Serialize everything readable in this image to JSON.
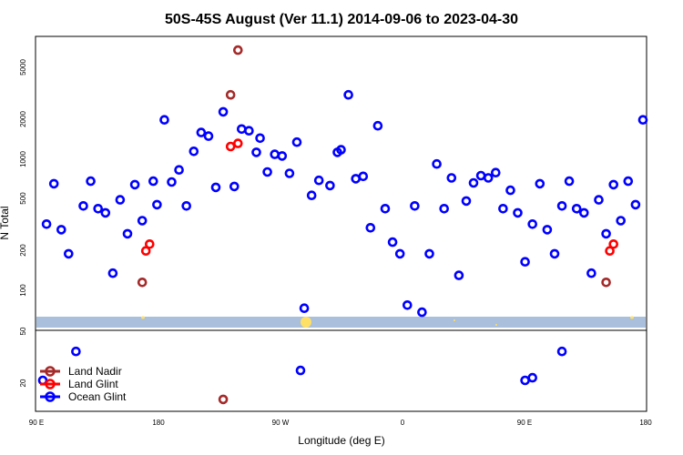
{
  "chart_data": {
    "type": "scatter",
    "title": "50S-45S August (Ver 11.1)   2014-09-06 to 2023-04-30",
    "xlabel": "Longitude (deg E)",
    "ylabel": "N Total",
    "x_ticks": [
      "90 E",
      "180",
      "90 W",
      "0",
      "90 E",
      "180"
    ],
    "y_ticks_top": [
      "100",
      "200",
      "500",
      "1000",
      "2000",
      "5000"
    ],
    "y_ticks_bottom": [
      "50",
      "20"
    ],
    "grid": false,
    "legend_position": "bottom-left",
    "series": [
      {
        "name": "Land Nadir",
        "color": "#a52a2a",
        "points": [
          [
            14,
            115
          ],
          [
            26,
            3100
          ],
          [
            27,
            6800
          ],
          [
            77,
            115
          ]
        ],
        "bottom_points": [
          [
            25,
            15
          ]
        ]
      },
      {
        "name": "Land Glint",
        "color": "#ff0000",
        "points": [
          [
            14.5,
            200
          ],
          [
            15,
            225
          ],
          [
            26,
            1250
          ],
          [
            27,
            1320
          ],
          [
            77.5,
            200
          ],
          [
            78,
            225
          ]
        ],
        "bottom_points": []
      },
      {
        "name": "Ocean Glint",
        "color": "#0000ff",
        "points": [
          [
            1,
            320
          ],
          [
            2,
            650
          ],
          [
            3,
            290
          ],
          [
            4,
            190
          ],
          [
            6,
            440
          ],
          [
            7,
            680
          ],
          [
            8,
            420
          ],
          [
            9,
            390
          ],
          [
            10,
            135
          ],
          [
            11,
            490
          ],
          [
            12,
            270
          ],
          [
            13,
            640
          ],
          [
            14,
            340
          ],
          [
            15.5,
            680
          ],
          [
            16,
            450
          ],
          [
            17,
            2000
          ],
          [
            18,
            670
          ],
          [
            19,
            830
          ],
          [
            20,
            440
          ],
          [
            21,
            1150
          ],
          [
            22,
            1600
          ],
          [
            23,
            1500
          ],
          [
            24,
            610
          ],
          [
            25,
            2300
          ],
          [
            26.5,
            620
          ],
          [
            27.5,
            1700
          ],
          [
            28.5,
            1650
          ],
          [
            29.5,
            1130
          ],
          [
            30,
            1450
          ],
          [
            31,
            800
          ],
          [
            32,
            1090
          ],
          [
            33,
            1060
          ],
          [
            34,
            780
          ],
          [
            35,
            1350
          ],
          [
            36,
            73
          ],
          [
            37,
            530
          ],
          [
            38,
            690
          ],
          [
            39.5,
            630
          ],
          [
            40.5,
            1130
          ],
          [
            41,
            1180
          ],
          [
            42,
            3100
          ],
          [
            43,
            710
          ],
          [
            44,
            740
          ],
          [
            45,
            300
          ],
          [
            46,
            1800
          ],
          [
            47,
            420
          ],
          [
            48,
            233
          ],
          [
            49,
            190
          ],
          [
            50,
            77
          ],
          [
            51,
            440
          ],
          [
            52,
            68
          ],
          [
            53,
            190
          ],
          [
            54,
            920
          ],
          [
            55,
            420
          ],
          [
            56,
            720
          ],
          [
            57,
            130
          ],
          [
            58,
            480
          ],
          [
            59,
            660
          ],
          [
            60,
            750
          ],
          [
            61,
            720
          ],
          [
            62,
            790
          ],
          [
            63,
            420
          ],
          [
            64,
            580
          ],
          [
            65,
            390
          ],
          [
            66,
            165
          ],
          [
            67,
            320
          ],
          [
            68,
            650
          ],
          [
            69,
            290
          ],
          [
            70,
            190
          ],
          [
            71,
            440
          ],
          [
            72,
            680
          ],
          [
            73,
            420
          ],
          [
            74,
            390
          ],
          [
            75,
            135
          ],
          [
            76,
            490
          ],
          [
            77,
            270
          ],
          [
            78,
            640
          ],
          [
            79,
            340
          ],
          [
            80,
            680
          ],
          [
            81,
            450
          ],
          [
            82,
            2000
          ]
        ],
        "bottom_points": [
          [
            0.5,
            21
          ],
          [
            5,
            35
          ],
          [
            35.5,
            25
          ],
          [
            66,
            21
          ],
          [
            67,
            22
          ],
          [
            71,
            35
          ]
        ]
      }
    ],
    "ocean_mask_color": "#a9bfdc",
    "land_mask_color": "#ffe066"
  }
}
